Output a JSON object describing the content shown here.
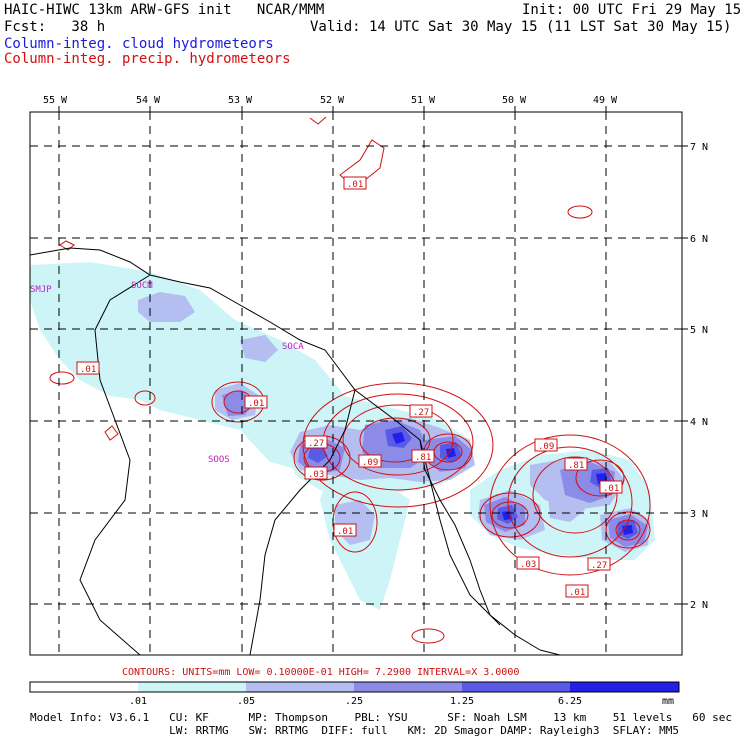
{
  "header": {
    "model_title": "HAIC-HIWC 13km ARW-GFS init   NCAR/MMM",
    "init": "Init: 00 UTC Fri 29 May 15",
    "fcst": "Fcst:   38 h",
    "valid": "Valid: 14 UTC Sat 30 May 15 (11 LST Sat 30 May 15)",
    "field_blue": "Column-integ. cloud hydrometeors",
    "field_red": "Column-integ. precip. hydrometeors"
  },
  "lon_labels": [
    "55 W",
    "54 W",
    "53 W",
    "52 W",
    "51 W",
    "50 W",
    "49 W"
  ],
  "lat_labels": [
    "7 N",
    "6 N",
    "5 N",
    "4 N",
    "3 N",
    "2 N"
  ],
  "stations": [
    "SMJP",
    "SOCM",
    "SOCA",
    "SOOS"
  ],
  "contour_labels": [
    ".01",
    ".01",
    ".01",
    ".01",
    ".27",
    ".27",
    ".03",
    ".09",
    ".81",
    ".09",
    ".81",
    ".01",
    ".03",
    ".27",
    ".01"
  ],
  "contour_info": "CONTOURS:  UNITS=mm  LOW= 0.10000E-01  HIGH=  7.2900     INTERVAL=X  3.0000",
  "scale": {
    "thresholds": [
      ".01",
      ".05",
      ".25",
      "1.25",
      "6.25"
    ],
    "unit": "mm",
    "colors": [
      "#ffffff",
      "#cdf5f8",
      "#b4bef0",
      "#8c8ce8",
      "#5a5ae6",
      "#2020e8"
    ]
  },
  "model_info": {
    "line1": "Model Info: V3.6.1   CU: KF      MP: Thompson    PBL: YSU      SF: Noah LSM    13 km    51 levels   60 sec",
    "line2": "                     LW: RRTMG   SW: RRTMG  DIFF: full   KM: 2D Smagor DAMP: Rayleigh3  SFLAY: MM5"
  }
}
